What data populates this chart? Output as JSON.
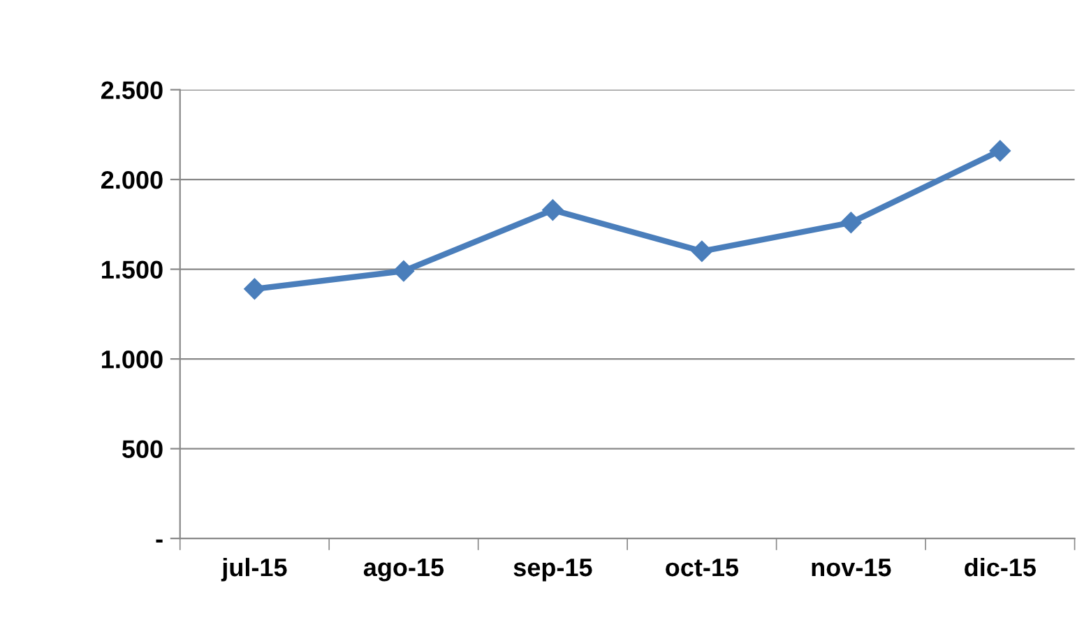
{
  "chart_data": {
    "type": "line",
    "categories": [
      "jul-15",
      "ago-15",
      "sep-15",
      "oct-15",
      "nov-15",
      "dic-15"
    ],
    "series": [
      {
        "color": "#4a7ebb",
        "values": [
          1390,
          1490,
          1830,
          1600,
          1760,
          2160
        ]
      }
    ],
    "ylim": [
      0,
      2500
    ],
    "yticks": [
      {
        "value": 0,
        "label": "-"
      },
      500,
      {
        "value": 1000,
        "label": "1.000"
      },
      {
        "value": 1500,
        "label": "1.500"
      },
      {
        "value": 2000,
        "label": "2.000"
      },
      {
        "value": 2500,
        "label": "2.500"
      }
    ],
    "grid": "y",
    "marker": "diamond",
    "line_style": "solid"
  }
}
